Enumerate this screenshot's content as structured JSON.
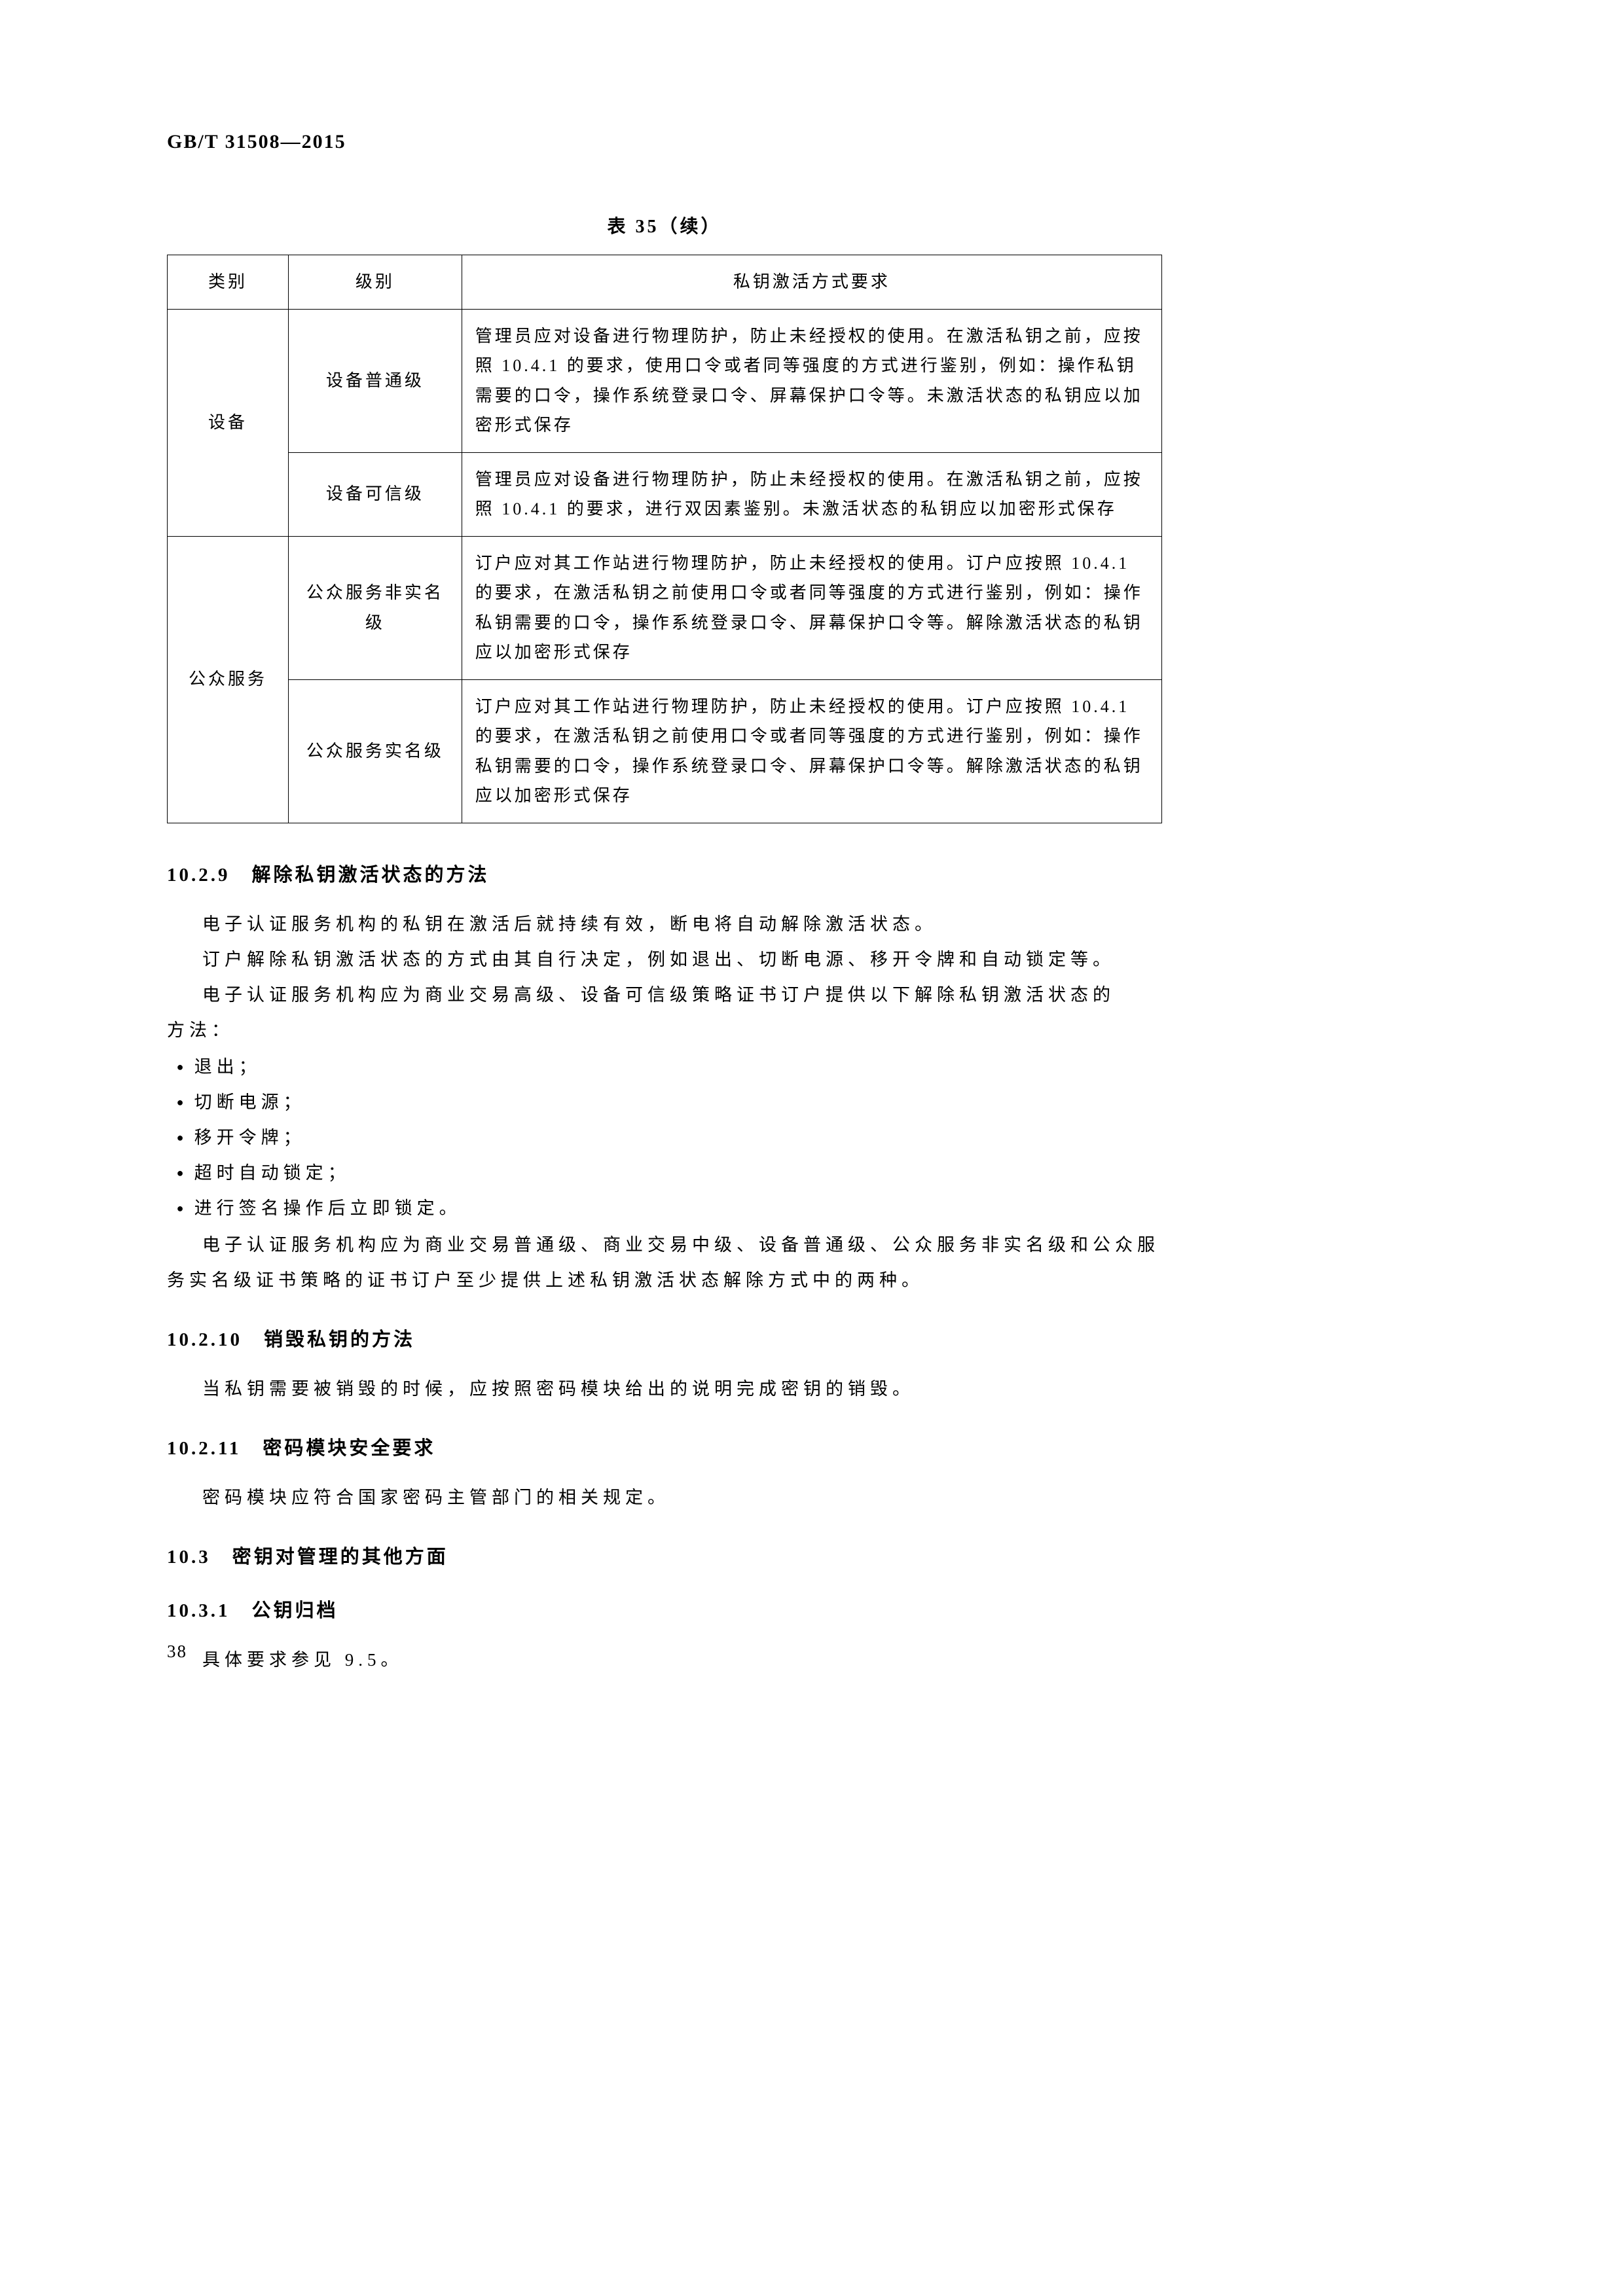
{
  "doc_id": "GB/T 31508—2015",
  "table_caption": "表 35（续）",
  "table": {
    "headers": [
      "类别",
      "级别",
      "私钥激活方式要求"
    ],
    "rows": [
      {
        "cat": "设备",
        "cat_rowspan": 2,
        "level": "设备普通级",
        "req": "管理员应对设备进行物理防护，防止未经授权的使用。在激活私钥之前，应按照 10.4.1 的要求，使用口令或者同等强度的方式进行鉴别，例如：操作私钥需要的口令，操作系统登录口令、屏幕保护口令等。未激活状态的私钥应以加密形式保存"
      },
      {
        "level": "设备可信级",
        "req": "管理员应对设备进行物理防护，防止未经授权的使用。在激活私钥之前，应按照 10.4.1 的要求，进行双因素鉴别。未激活状态的私钥应以加密形式保存"
      },
      {
        "cat": "公众服务",
        "cat_rowspan": 2,
        "level": "公众服务非实名级",
        "req": "订户应对其工作站进行物理防护，防止未经授权的使用。订户应按照 10.4.1 的要求，在激活私钥之前使用口令或者同等强度的方式进行鉴别，例如：操作私钥需要的口令，操作系统登录口令、屏幕保护口令等。解除激活状态的私钥应以加密形式保存"
      },
      {
        "level": "公众服务实名级",
        "req": "订户应对其工作站进行物理防护，防止未经授权的使用。订户应按照 10.4.1 的要求，在激活私钥之前使用口令或者同等强度的方式进行鉴别，例如：操作私钥需要的口令，操作系统登录口令、屏幕保护口令等。解除激活状态的私钥应以加密形式保存"
      }
    ]
  },
  "s10_2_9": {
    "head": "10.2.9　解除私钥激活状态的方法",
    "p1": "电子认证服务机构的私钥在激活后就持续有效，断电将自动解除激活状态。",
    "p2": "订户解除私钥激活状态的方式由其自行决定，例如退出、切断电源、移开令牌和自动锁定等。",
    "p3": "电子认证服务机构应为商业交易高级、设备可信级策略证书订户提供以下解除私钥激活状态的",
    "p3b": "方法：",
    "bullets": [
      "退出；",
      "切断电源；",
      "移开令牌；",
      "超时自动锁定；",
      "进行签名操作后立即锁定。"
    ],
    "p4": "电子认证服务机构应为商业交易普通级、商业交易中级、设备普通级、公众服务非实名级和公众服",
    "p4b": "务实名级证书策略的证书订户至少提供上述私钥激活状态解除方式中的两种。"
  },
  "s10_2_10": {
    "head": "10.2.10　销毁私钥的方法",
    "p1": "当私钥需要被销毁的时候，应按照密码模块给出的说明完成密钥的销毁。"
  },
  "s10_2_11": {
    "head": "10.2.11　密码模块安全要求",
    "p1": "密码模块应符合国家密码主管部门的相关规定。"
  },
  "s10_3": {
    "head": "10.3　密钥对管理的其他方面"
  },
  "s10_3_1": {
    "head": "10.3.1　公钥归档",
    "p1": "具体要求参见 9.5。"
  },
  "page_number": "38"
}
